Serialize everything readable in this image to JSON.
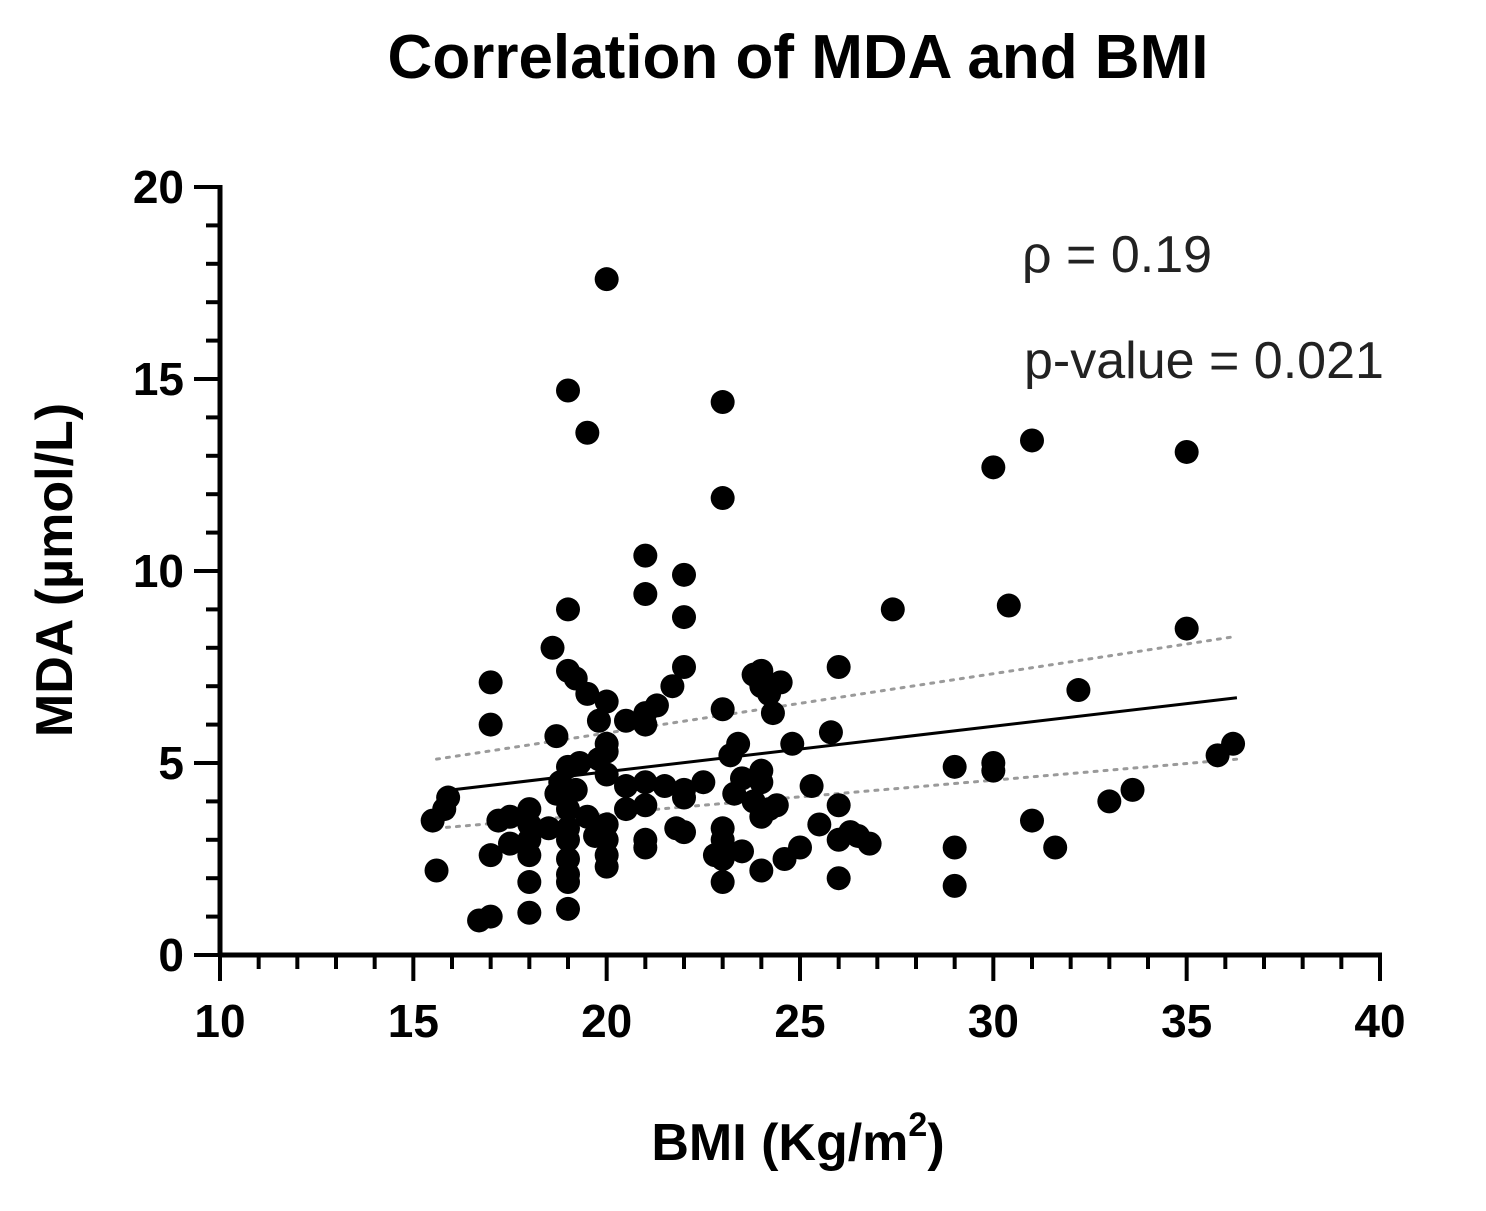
{
  "chart_data": {
    "type": "scatter",
    "title": "Correlation of MDA and BMI",
    "xlabel": "BMI (Kg/m",
    "xlabel_superscript": "2",
    "xlabel_suffix": ")",
    "ylabel": "MDA (µmol/L)",
    "xlim": [
      10,
      40
    ],
    "ylim": [
      0,
      20
    ],
    "x_ticks": [
      10,
      15,
      20,
      25,
      30,
      35,
      40
    ],
    "y_ticks": [
      0,
      5,
      10,
      15,
      20
    ],
    "x_minor_step": 1,
    "y_minor_step": 1,
    "grid": false,
    "annotations": [
      "ρ = 0.19",
      "p-value = 0.021"
    ],
    "marker_color": "#000000",
    "fit_line": {
      "x": [
        16.0,
        36.3
      ],
      "y": [
        4.3,
        6.7
      ],
      "color": "#000000"
    },
    "ci_upper": {
      "x": [
        15.6,
        36.3
      ],
      "y": [
        5.1,
        8.3
      ],
      "color": "#9a9a9a"
    },
    "ci_lower": {
      "x": [
        15.6,
        36.3
      ],
      "y": [
        3.3,
        5.1
      ],
      "color": "#9a9a9a"
    },
    "points": [
      [
        20.0,
        17.6
      ],
      [
        19.0,
        14.7
      ],
      [
        23.0,
        14.4
      ],
      [
        19.5,
        13.6
      ],
      [
        23.0,
        11.9
      ],
      [
        21.0,
        10.4
      ],
      [
        22.0,
        9.9
      ],
      [
        21.0,
        9.4
      ],
      [
        19.0,
        9.0
      ],
      [
        22.0,
        8.8
      ],
      [
        18.6,
        8.0
      ],
      [
        22.0,
        7.5
      ],
      [
        19.0,
        7.4
      ],
      [
        19.2,
        7.2
      ],
      [
        17.0,
        7.1
      ],
      [
        21.7,
        7.0
      ],
      [
        19.5,
        6.8
      ],
      [
        20.0,
        6.6
      ],
      [
        21.3,
        6.5
      ],
      [
        21.0,
        6.3
      ],
      [
        20.5,
        6.1
      ],
      [
        19.8,
        6.1
      ],
      [
        21.0,
        6.0
      ],
      [
        17.0,
        6.0
      ],
      [
        18.7,
        5.7
      ],
      [
        20.0,
        5.5
      ],
      [
        20.0,
        5.3
      ],
      [
        19.8,
        5.1
      ],
      [
        19.3,
        5.0
      ],
      [
        19.0,
        4.9
      ],
      [
        20.0,
        4.7
      ],
      [
        18.8,
        4.5
      ],
      [
        19.0,
        4.3
      ],
      [
        18.7,
        4.2
      ],
      [
        19.2,
        4.3
      ],
      [
        20.5,
        4.4
      ],
      [
        21.0,
        4.5
      ],
      [
        21.5,
        4.4
      ],
      [
        22.0,
        4.3
      ],
      [
        22.5,
        4.5
      ],
      [
        22.0,
        4.1
      ],
      [
        21.0,
        3.9
      ],
      [
        20.5,
        3.8
      ],
      [
        19.0,
        3.8
      ],
      [
        18.0,
        3.8
      ],
      [
        17.5,
        3.6
      ],
      [
        17.2,
        3.5
      ],
      [
        18.0,
        3.4
      ],
      [
        18.5,
        3.3
      ],
      [
        19.0,
        3.3
      ],
      [
        19.5,
        3.6
      ],
      [
        20.0,
        3.4
      ],
      [
        19.7,
        3.1
      ],
      [
        20.0,
        3.0
      ],
      [
        19.0,
        3.0
      ],
      [
        18.0,
        3.0
      ],
      [
        17.5,
        2.9
      ],
      [
        17.0,
        2.6
      ],
      [
        18.0,
        2.6
      ],
      [
        19.0,
        2.5
      ],
      [
        20.0,
        2.6
      ],
      [
        21.0,
        2.8
      ],
      [
        21.0,
        3.0
      ],
      [
        21.8,
        3.3
      ],
      [
        22.0,
        3.2
      ],
      [
        23.0,
        3.3
      ],
      [
        23.0,
        3.0
      ],
      [
        23.0,
        2.7
      ],
      [
        23.0,
        2.5
      ],
      [
        23.5,
        2.7
      ],
      [
        22.8,
        2.6
      ],
      [
        24.0,
        2.2
      ],
      [
        23.0,
        1.9
      ],
      [
        20.0,
        2.3
      ],
      [
        19.0,
        2.1
      ],
      [
        19.0,
        1.9
      ],
      [
        18.0,
        1.9
      ],
      [
        18.0,
        1.1
      ],
      [
        19.0,
        1.2
      ],
      [
        17.0,
        1.0
      ],
      [
        16.7,
        0.9
      ],
      [
        15.6,
        2.2
      ],
      [
        15.5,
        3.5
      ],
      [
        15.9,
        4.1
      ],
      [
        15.8,
        3.8
      ],
      [
        23.2,
        5.2
      ],
      [
        23.4,
        5.5
      ],
      [
        23.0,
        6.4
      ],
      [
        23.8,
        7.3
      ],
      [
        24.0,
        7.4
      ],
      [
        24.0,
        7.0
      ],
      [
        24.5,
        7.1
      ],
      [
        24.2,
        6.8
      ],
      [
        24.3,
        6.3
      ],
      [
        24.8,
        5.5
      ],
      [
        25.3,
        4.4
      ],
      [
        24.0,
        4.8
      ],
      [
        24.0,
        4.5
      ],
      [
        23.5,
        4.6
      ],
      [
        23.3,
        4.2
      ],
      [
        23.8,
        4.0
      ],
      [
        24.2,
        3.8
      ],
      [
        24.4,
        3.9
      ],
      [
        24.0,
        3.6
      ],
      [
        25.5,
        3.4
      ],
      [
        25.8,
        5.8
      ],
      [
        25.0,
        2.8
      ],
      [
        24.6,
        2.5
      ],
      [
        26.0,
        3.9
      ],
      [
        26.0,
        3.0
      ],
      [
        26.3,
        3.2
      ],
      [
        26.5,
        3.1
      ],
      [
        26.8,
        2.9
      ],
      [
        26.0,
        2.0
      ],
      [
        26.0,
        7.5
      ],
      [
        27.4,
        9.0
      ],
      [
        29.0,
        4.9
      ],
      [
        29.0,
        2.8
      ],
      [
        29.0,
        1.8
      ],
      [
        30.0,
        12.7
      ],
      [
        30.0,
        5.0
      ],
      [
        30.0,
        4.8
      ],
      [
        30.4,
        9.1
      ],
      [
        31.0,
        13.4
      ],
      [
        31.0,
        3.5
      ],
      [
        31.6,
        2.8
      ],
      [
        32.2,
        6.9
      ],
      [
        33.0,
        4.0
      ],
      [
        33.6,
        4.3
      ],
      [
        35.0,
        13.1
      ],
      [
        35.0,
        8.5
      ],
      [
        35.8,
        5.2
      ],
      [
        36.2,
        5.5
      ]
    ]
  }
}
